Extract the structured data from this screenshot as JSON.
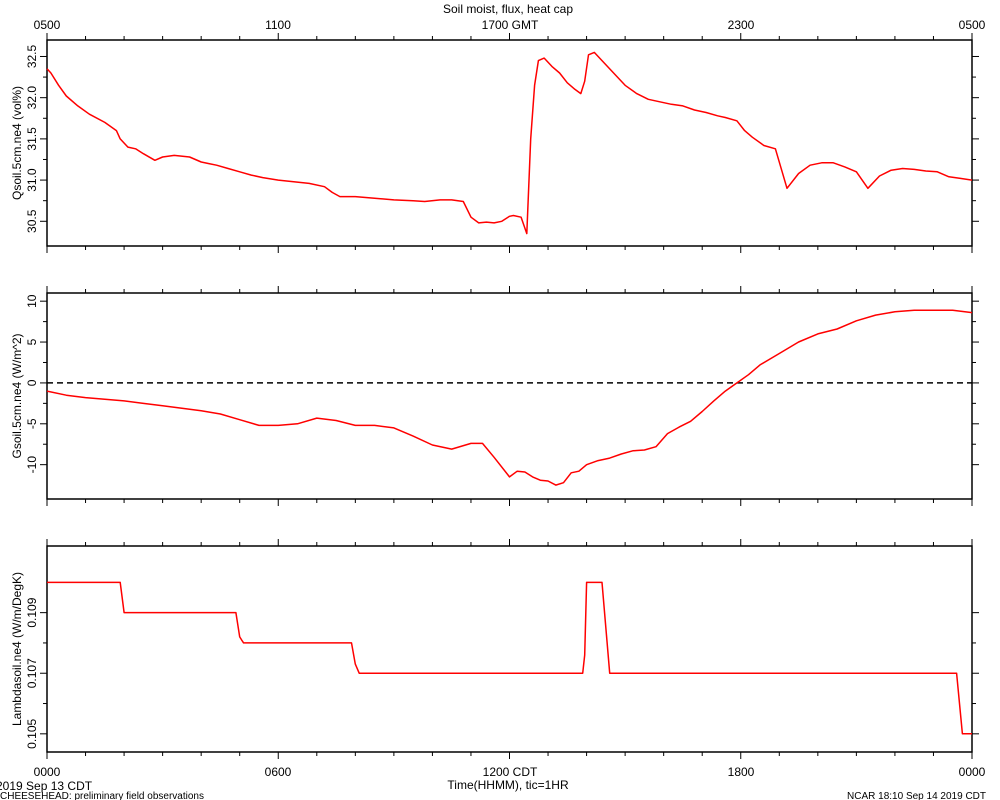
{
  "title": "Soil moist, flux, heat cap",
  "top_axis": {
    "ticks": [
      "0500",
      "1100",
      "1700 GMT",
      "2300",
      "0500"
    ]
  },
  "bottom_axis": {
    "ticks": [
      "0000",
      "0600",
      "1200 CDT",
      "1800",
      "0000"
    ],
    "label": "Time(HHMM), tic=1HR"
  },
  "footer": {
    "date_left": "2019 Sep 13 CDT",
    "note_left": "CHEESEHEAD: preliminary field observations",
    "stamp_right": "NCAR 18:10 Sep 14 2019 CDT"
  },
  "colors": {
    "series": "#ff0000",
    "axes": "#000000",
    "zero_line": "#000000"
  },
  "chart_data": [
    {
      "type": "line",
      "ylabel": "Qsoil.5cm.ne4 (vol%)",
      "xlim": [
        0,
        24
      ],
      "ylim": [
        30.2,
        32.7
      ],
      "yticks": [
        30.5,
        31.0,
        31.5,
        32.0,
        32.5
      ],
      "ytick_labels": [
        "30.5",
        "31.0",
        "31.5",
        "32.0",
        "32.5"
      ],
      "grid": false,
      "series": [
        {
          "x": [
            0,
            0.1,
            0.3,
            0.5,
            0.8,
            1.1,
            1.5,
            1.8,
            1.9,
            2.1,
            2.3,
            2.5,
            2.8,
            3.0,
            3.3,
            3.7,
            4.0,
            4.2,
            4.4,
            4.7,
            5.0,
            5.3,
            5.6,
            6.0,
            6.4,
            6.8,
            7.2,
            7.4,
            7.6,
            8.0,
            8.5,
            9.0,
            9.5,
            9.8,
            10.2,
            10.5,
            10.8,
            11.0,
            11.2,
            11.4,
            11.6,
            11.8,
            12.0,
            12.1,
            12.3,
            12.45,
            12.55,
            12.65,
            12.75,
            12.9,
            13.1,
            13.3,
            13.5,
            13.7,
            13.85,
            13.95,
            14.05,
            14.2,
            14.4,
            14.7,
            15.0,
            15.3,
            15.6,
            15.9,
            16.2,
            16.5,
            16.8,
            17.1,
            17.4,
            17.6,
            17.9,
            18.1,
            18.3,
            18.6,
            18.9,
            19.2,
            19.5,
            19.8,
            20.1,
            20.4,
            20.7,
            21.0,
            21.3,
            21.6,
            21.9,
            22.2,
            22.5,
            22.8,
            23.1,
            23.4,
            23.7,
            24.0
          ],
          "y": [
            32.35,
            32.3,
            32.15,
            32.02,
            31.9,
            31.8,
            31.7,
            31.6,
            31.5,
            31.4,
            31.38,
            31.32,
            31.24,
            31.28,
            31.3,
            31.28,
            31.22,
            31.2,
            31.18,
            31.14,
            31.1,
            31.06,
            31.03,
            31.0,
            30.98,
            30.96,
            30.92,
            30.85,
            30.8,
            30.8,
            30.78,
            30.76,
            30.75,
            30.74,
            30.76,
            30.76,
            30.74,
            30.55,
            30.48,
            30.49,
            30.48,
            30.5,
            30.56,
            30.57,
            30.55,
            30.35,
            31.5,
            32.15,
            32.45,
            32.48,
            32.38,
            32.3,
            32.18,
            32.1,
            32.05,
            32.2,
            32.52,
            32.55,
            32.45,
            32.3,
            32.15,
            32.05,
            31.98,
            31.95,
            31.92,
            31.9,
            31.85,
            31.82,
            31.78,
            31.76,
            31.72,
            31.6,
            31.52,
            31.42,
            31.38,
            30.9,
            31.08,
            31.18,
            31.21,
            31.21,
            31.16,
            31.1,
            30.9,
            31.05,
            31.12,
            31.14,
            31.13,
            31.11,
            31.1,
            31.04,
            31.02,
            31.0
          ]
        }
      ]
    },
    {
      "type": "line",
      "ylabel": "Gsoil.5cm.ne4 (W/m^2)",
      "xlim": [
        0,
        24
      ],
      "ylim": [
        -14.2,
        11
      ],
      "yticks": [
        -10,
        -5,
        0,
        5,
        10
      ],
      "ytick_labels": [
        "-10",
        "-5",
        "0",
        "5",
        "10"
      ],
      "reference_line": {
        "y": 0,
        "style": "dashed"
      },
      "grid": false,
      "series": [
        {
          "x": [
            0,
            0.5,
            1.0,
            1.5,
            2.0,
            2.5,
            3.0,
            3.5,
            4.0,
            4.5,
            5.0,
            5.5,
            6.0,
            6.5,
            7.0,
            7.5,
            8.0,
            8.5,
            9.0,
            9.5,
            10.0,
            10.5,
            11.0,
            11.3,
            11.6,
            12.0,
            12.2,
            12.4,
            12.6,
            12.8,
            13.0,
            13.2,
            13.4,
            13.6,
            13.8,
            14.0,
            14.3,
            14.6,
            14.9,
            15.2,
            15.5,
            15.8,
            16.1,
            16.4,
            16.7,
            17.0,
            17.3,
            17.6,
            17.9,
            18.2,
            18.5,
            19.0,
            19.5,
            20.0,
            20.5,
            21.0,
            21.5,
            22.0,
            22.5,
            23.0,
            23.5,
            24.0
          ],
          "y": [
            -1.0,
            -1.5,
            -1.8,
            -2.0,
            -2.2,
            -2.5,
            -2.8,
            -3.1,
            -3.4,
            -3.8,
            -4.5,
            -5.2,
            -5.2,
            -5.0,
            -4.3,
            -4.6,
            -5.2,
            -5.2,
            -5.5,
            -6.5,
            -7.6,
            -8.1,
            -7.4,
            -7.4,
            -9.1,
            -11.5,
            -10.8,
            -10.9,
            -11.5,
            -11.9,
            -12.0,
            -12.5,
            -12.2,
            -11.0,
            -10.8,
            -10.0,
            -9.5,
            -9.2,
            -8.7,
            -8.3,
            -8.2,
            -7.8,
            -6.2,
            -5.4,
            -4.7,
            -3.5,
            -2.2,
            -1.0,
            0.0,
            1.0,
            2.2,
            3.6,
            5.0,
            6.0,
            6.6,
            7.6,
            8.3,
            8.7,
            8.9,
            8.9,
            8.9,
            8.6
          ]
        }
      ]
    },
    {
      "type": "line",
      "ylabel": "Lambdasoil.ne4 (W/m/DegK)",
      "xlim": [
        0,
        24
      ],
      "ylim": [
        0.1044,
        0.1112
      ],
      "yticks": [
        0.105,
        0.107,
        0.109
      ],
      "ytick_labels": [
        "0.105",
        "0.107",
        "0.109"
      ],
      "grid": false,
      "series": [
        {
          "x": [
            0,
            1.9,
            2.0,
            4.9,
            5.0,
            5.05,
            5.1,
            7.9,
            8.0,
            8.1,
            8.2,
            13.9,
            13.95,
            14.0,
            14.1,
            14.4,
            14.6,
            23.6,
            23.75,
            24.0
          ],
          "y": [
            0.11,
            0.11,
            0.109,
            0.109,
            0.1082,
            0.1081,
            0.108,
            0.108,
            0.1073,
            0.107,
            0.107,
            0.107,
            0.1076,
            0.11,
            0.11,
            0.11,
            0.107,
            0.107,
            0.105,
            0.105
          ]
        }
      ]
    }
  ]
}
